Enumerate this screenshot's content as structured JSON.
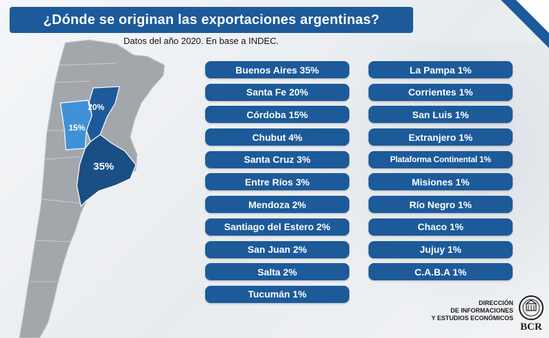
{
  "title": "¿Dónde se originan las exportaciones argentinas?",
  "subtitle": "Datos del año 2020. En base a INDEC.",
  "map": {
    "labels": {
      "santa_fe": "20%",
      "cordoba": "15%",
      "buenos_aires": "35%"
    },
    "colors": {
      "land": "#a3a7ac",
      "highlight_dark": "#1c5a9a",
      "highlight_light": "#3f92d8",
      "buenos_aires": "#1a4f86"
    }
  },
  "provinces_left": [
    "Buenos Aires 35%",
    "Santa Fe 20%",
    "Córdoba 15%",
    "Chubut 4%",
    "Santa Cruz 3%",
    "Entre Ríos 3%",
    "Mendoza 2%",
    "Santiago del Estero 2%",
    "San Juan 2%",
    "Salta 2%",
    "Tucumán 1%"
  ],
  "provinces_right": [
    "La Pampa 1%",
    "Corrientes 1%",
    "San Luis 1%",
    "Extranjero 1%",
    "Plataforma Continental 1%",
    "Misiones 1%",
    "Río Negro 1%",
    "Chaco 1%",
    "Jujuy 1%",
    "C.A.B.A 1%"
  ],
  "footer": {
    "line1": "DIRECCIÓN",
    "line2": "DE INFORMACIONES",
    "line3": "Y ESTUDIOS ECONÓMICOS",
    "logo_text": "BCR"
  },
  "accent_color": "#1c5a9a"
}
